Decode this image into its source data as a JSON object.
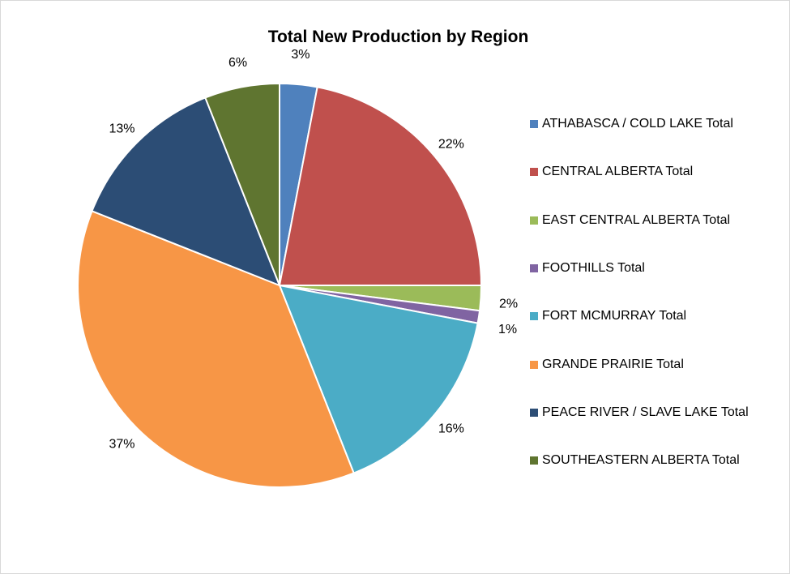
{
  "chart_data": {
    "type": "pie",
    "title": "Total New Production by Region",
    "legend_position": "right",
    "start_angle_deg": 0,
    "direction": "clockwise",
    "slices": [
      {
        "label": "ATHABASCA / COLD LAKE Total",
        "value": 3,
        "display": "3%",
        "color": "#4f81bd"
      },
      {
        "label": "CENTRAL ALBERTA Total",
        "value": 22,
        "display": "22%",
        "color": "#c0504d"
      },
      {
        "label": "EAST CENTRAL ALBERTA Total",
        "value": 2,
        "display": "2%",
        "color": "#9bbb59"
      },
      {
        "label": "FOOTHILLS Total",
        "value": 1,
        "display": "1%",
        "color": "#8064a2"
      },
      {
        "label": "FORT MCMURRAY Total",
        "value": 16,
        "display": "16%",
        "color": "#4bacc6"
      },
      {
        "label": "GRANDE PRAIRIE Total",
        "value": 37,
        "display": "37%",
        "color": "#f79646"
      },
      {
        "label": "PEACE RIVER / SLAVE LAKE Total",
        "value": 13,
        "display": "13%",
        "color": "#2c4d75"
      },
      {
        "label": "SOUTHEASTERN ALBERTA Total",
        "value": 6,
        "display": "6%",
        "color": "#5f7530"
      }
    ]
  }
}
